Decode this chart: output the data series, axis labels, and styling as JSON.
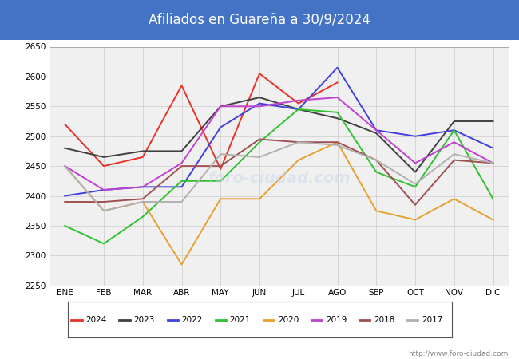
{
  "title": "Afiliados en Guareña a 30/9/2024",
  "title_bg": "#4472c4",
  "ylim": [
    2250,
    2650
  ],
  "yticks": [
    2250,
    2300,
    2350,
    2400,
    2450,
    2500,
    2550,
    2600,
    2650
  ],
  "months": [
    "ENE",
    "FEB",
    "MAR",
    "ABR",
    "MAY",
    "JUN",
    "JUL",
    "AGO",
    "SEP",
    "OCT",
    "NOV",
    "DIC"
  ],
  "watermark": "http://www.foro-ciudad.com",
  "series": [
    {
      "year": "2024",
      "color": "#e8312a",
      "data": [
        2520,
        2450,
        2465,
        2585,
        2445,
        2605,
        2555,
        2590,
        null,
        null,
        null,
        null
      ]
    },
    {
      "year": "2023",
      "color": "#404040",
      "data": [
        2480,
        2465,
        2475,
        2475,
        2550,
        2565,
        2545,
        2530,
        2505,
        2440,
        2525,
        2525
      ]
    },
    {
      "year": "2022",
      "color": "#4040e0",
      "data": [
        2400,
        2410,
        2415,
        2415,
        2515,
        2555,
        2545,
        2615,
        2510,
        2500,
        2510,
        2480
      ]
    },
    {
      "year": "2021",
      "color": "#30c030",
      "data": [
        2350,
        2320,
        2365,
        2425,
        2425,
        2490,
        2545,
        2540,
        2440,
        2415,
        2510,
        2395
      ]
    },
    {
      "year": "2020",
      "color": "#e8a030",
      "data": [
        2450,
        2375,
        2390,
        2285,
        2395,
        2395,
        2460,
        2490,
        2375,
        2360,
        2395,
        2360
      ]
    },
    {
      "year": "2019",
      "color": "#c040d0",
      "data": [
        2450,
        2410,
        2415,
        2455,
        2550,
        2550,
        2560,
        2565,
        2510,
        2455,
        2490,
        2455
      ]
    },
    {
      "year": "2018",
      "color": "#a05050",
      "data": [
        2390,
        2390,
        2395,
        2450,
        2450,
        2495,
        2490,
        2490,
        2460,
        2385,
        2460,
        2455
      ]
    },
    {
      "year": "2017",
      "color": "#b0b0b0",
      "data": [
        2450,
        2375,
        2390,
        2390,
        2470,
        2465,
        2490,
        2485,
        2460,
        2420,
        2470,
        2455
      ]
    }
  ]
}
